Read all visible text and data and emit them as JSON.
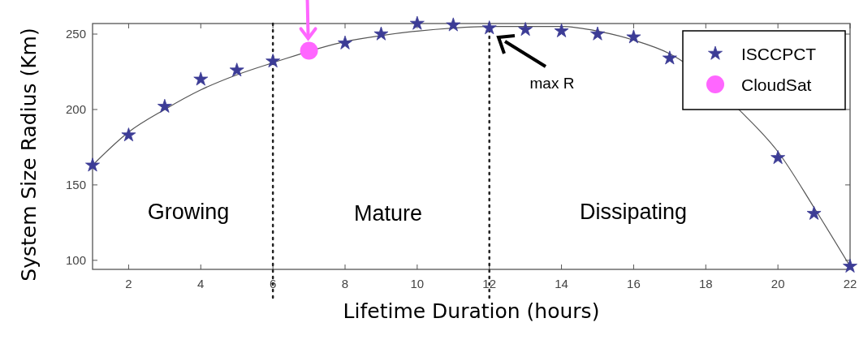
{
  "chart_data": {
    "type": "scatter",
    "xlabel": "Lifetime Duration (hours)",
    "ylabel": "System Size Radius (Km)",
    "xlim": [
      1,
      22
    ],
    "ylim": [
      94,
      257
    ],
    "xticks": [
      2,
      4,
      6,
      8,
      10,
      12,
      14,
      16,
      18,
      20,
      22
    ],
    "yticks": [
      100,
      150,
      200,
      250
    ],
    "legend": "top right",
    "grid": false,
    "series": [
      {
        "type": "line",
        "color": "#555555",
        "marker": "none",
        "line_style": "solid",
        "x": [
          1,
          2,
          3,
          4,
          5,
          6,
          8,
          9,
          10,
          11,
          12,
          13,
          14,
          15,
          16,
          17,
          19,
          20,
          21,
          22
        ],
        "values": [
          163,
          185,
          200,
          213,
          223,
          231,
          245,
          249,
          252,
          254,
          255,
          255,
          255,
          252,
          246,
          237,
          198,
          172,
          135,
          96
        ]
      },
      {
        "name": "ISCCPCT",
        "color": "#3c3c96",
        "marker": "star",
        "x": [
          1,
          2,
          3,
          4,
          5,
          6,
          8,
          9,
          10,
          11,
          12,
          13,
          14,
          15,
          16,
          17,
          20,
          21,
          22
        ],
        "values": [
          163,
          183,
          202,
          220,
          226,
          232,
          244,
          250,
          257,
          256,
          254,
          253,
          252,
          250,
          248,
          234,
          168,
          131,
          96
        ]
      },
      {
        "name": "CloudSat",
        "color": "#ff66ff",
        "marker": "circle",
        "x": [
          7
        ],
        "values": [
          239
        ]
      }
    ],
    "ref_lines": [
      {
        "axis": "x",
        "value": 6,
        "line_style": "dotted",
        "color": "#222222"
      },
      {
        "axis": "x",
        "value": 12,
        "line_style": "dotted",
        "color": "#222222"
      }
    ],
    "annotations": [
      "Growing",
      "Mature",
      "Dissipating",
      "max R"
    ]
  }
}
